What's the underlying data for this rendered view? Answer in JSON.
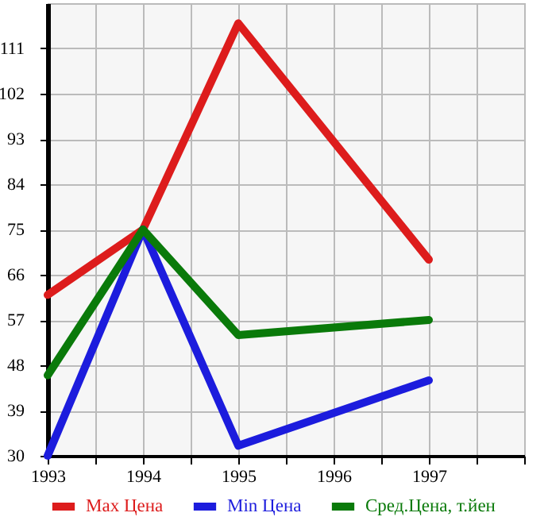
{
  "chart_data": {
    "type": "line",
    "x": [
      1993,
      1994,
      1995,
      1997
    ],
    "series": [
      {
        "name": "Max Цена",
        "color": "#dd1c1c",
        "values": [
          62,
          75,
          116,
          69
        ]
      },
      {
        "name": "Min Цена",
        "color": "#1c1cdd",
        "values": [
          30,
          75,
          32,
          45
        ]
      },
      {
        "name": "Сред.Цена, т.йен",
        "color": "#0a7a0a",
        "values": [
          46,
          75,
          54,
          57
        ]
      }
    ],
    "xlim": [
      1993,
      1998
    ],
    "xticks": [
      1993,
      {
        "value": 1993.5,
        "label": null
      },
      1994,
      {
        "value": 1994.5,
        "label": null
      },
      1995,
      {
        "value": 1995.5,
        "label": null
      },
      1996,
      {
        "value": 1996.5,
        "label": null
      },
      1997,
      {
        "value": 1997.5,
        "label": null
      },
      {
        "value": 1998,
        "label": null
      }
    ],
    "ylim": [
      30,
      120
    ],
    "yticks": [
      30,
      39,
      48,
      57,
      66,
      75,
      84,
      93,
      102,
      111
    ],
    "grid": true,
    "legend": "bottom"
  }
}
